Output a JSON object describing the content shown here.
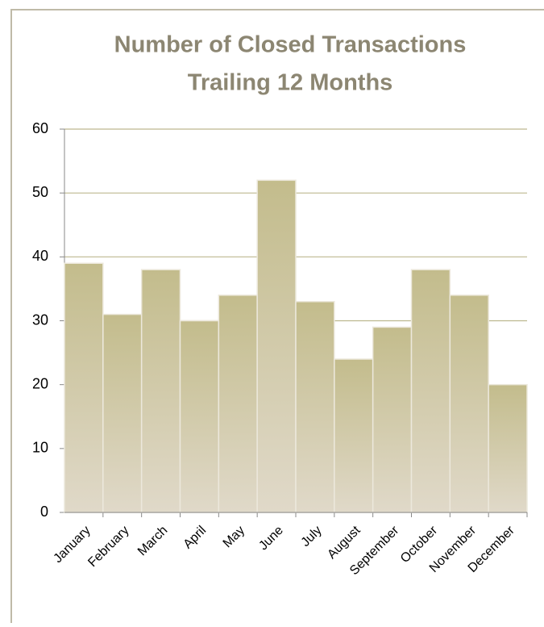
{
  "chart_data": {
    "type": "bar",
    "title_lines": [
      "Number of Closed Transactions",
      "Trailing 12 Months"
    ],
    "categories": [
      "January",
      "February",
      "March",
      "April",
      "May",
      "June",
      "July",
      "August",
      "September",
      "October",
      "November",
      "December"
    ],
    "values": [
      39,
      31,
      38,
      30,
      34,
      52,
      33,
      24,
      29,
      38,
      34,
      20
    ],
    "color": "#c3bc8c",
    "ylim": [
      0,
      60
    ],
    "yticks": [
      0,
      10,
      20,
      30,
      40,
      50,
      60
    ],
    "grid": true
  }
}
